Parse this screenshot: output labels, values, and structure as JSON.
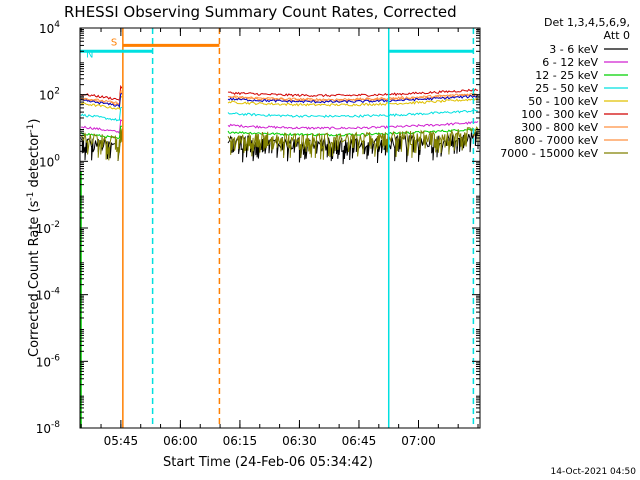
{
  "chart_data": {
    "type": "line",
    "title": "RHESSI Observing Summary Count Rates, Corrected",
    "xlabel": "Start Time (24-Feb-06 05:34:42)",
    "ylabel_main": "Corrected Count Rate (s",
    "ylabel_sup1": "-1",
    "ylabel_mid": " detector",
    "ylabel_sup2": "-1",
    "ylabel_end": ")",
    "y_scale": "log",
    "ylim": [
      1e-08,
      10000
    ],
    "xlim": [
      "05:34:42",
      "07:15:30"
    ],
    "x_ticks": [
      "05:45",
      "06:00",
      "06:15",
      "06:30",
      "06:45",
      "07:00"
    ],
    "y_ticks": [
      {
        "value": 1e-08,
        "base": "10",
        "exp": "-8"
      },
      {
        "value": 1e-06,
        "base": "10",
        "exp": "-6"
      },
      {
        "value": 0.0001,
        "base": "10",
        "exp": "-4"
      },
      {
        "value": 0.01,
        "base": "10",
        "exp": "-2"
      },
      {
        "value": 1,
        "base": "10",
        "exp": "0"
      },
      {
        "value": 100,
        "base": "10",
        "exp": "2"
      },
      {
        "value": 10000,
        "base": "10",
        "exp": "4"
      }
    ],
    "legend_header": [
      "Det 1,3,4,5,6,9,",
      "Att 0"
    ],
    "legend_placement": "right",
    "gaps": [
      [
        "05:45:30",
        "06:11:40"
      ]
    ],
    "series": [
      {
        "name": "3 - 6 keV",
        "color": "#000000",
        "level": 4.0,
        "noisy": true
      },
      {
        "name": "6 - 12 keV",
        "color": "#d020d0",
        "level": 11
      },
      {
        "name": "12 - 25 keV",
        "color": "#00d000",
        "level": 7
      },
      {
        "name": "25 - 50 keV",
        "color": "#00e0e0",
        "level": 25
      },
      {
        "name": "50 - 100 keV",
        "color": "#e0c000",
        "level": 55
      },
      {
        "name": "100 - 300 keV",
        "color": "#d00000",
        "level": 105
      },
      {
        "name": "300 - 800 keV",
        "color": "#ff9040",
        "level": 75
      },
      {
        "name": "800 - 7000 keV",
        "color": "#ff9040",
        "level": 80
      },
      {
        "name": "7000 - 15000 keV",
        "color": "#808000",
        "level": 5.5,
        "noisy": true
      }
    ],
    "blue_series_level": 68,
    "flags": [
      {
        "label": "S",
        "color": "#ff7f00",
        "start": "05:45:30",
        "end": "06:09:50",
        "level": 3000
      },
      {
        "label": "N",
        "color": "#00e0e0",
        "start": "05:34:42",
        "end": "05:53:00",
        "level": 2000
      },
      {
        "label": "",
        "color": "#00e0e0",
        "start": "06:52:30",
        "end": "07:13:50",
        "level": 2000
      }
    ],
    "vlines": [
      {
        "time": "05:45:30",
        "color": "#ff7f00",
        "style": "solid"
      },
      {
        "time": "05:53:00",
        "color": "#00e0e0",
        "style": "dashed"
      },
      {
        "time": "06:09:50",
        "color": "#ff7f00",
        "style": "dashed"
      },
      {
        "time": "06:52:30",
        "color": "#00e0e0",
        "style": "solid"
      },
      {
        "time": "07:13:50",
        "color": "#00e0e0",
        "style": "dashed"
      }
    ],
    "timestamp": "14-Oct-2021 04:50"
  }
}
